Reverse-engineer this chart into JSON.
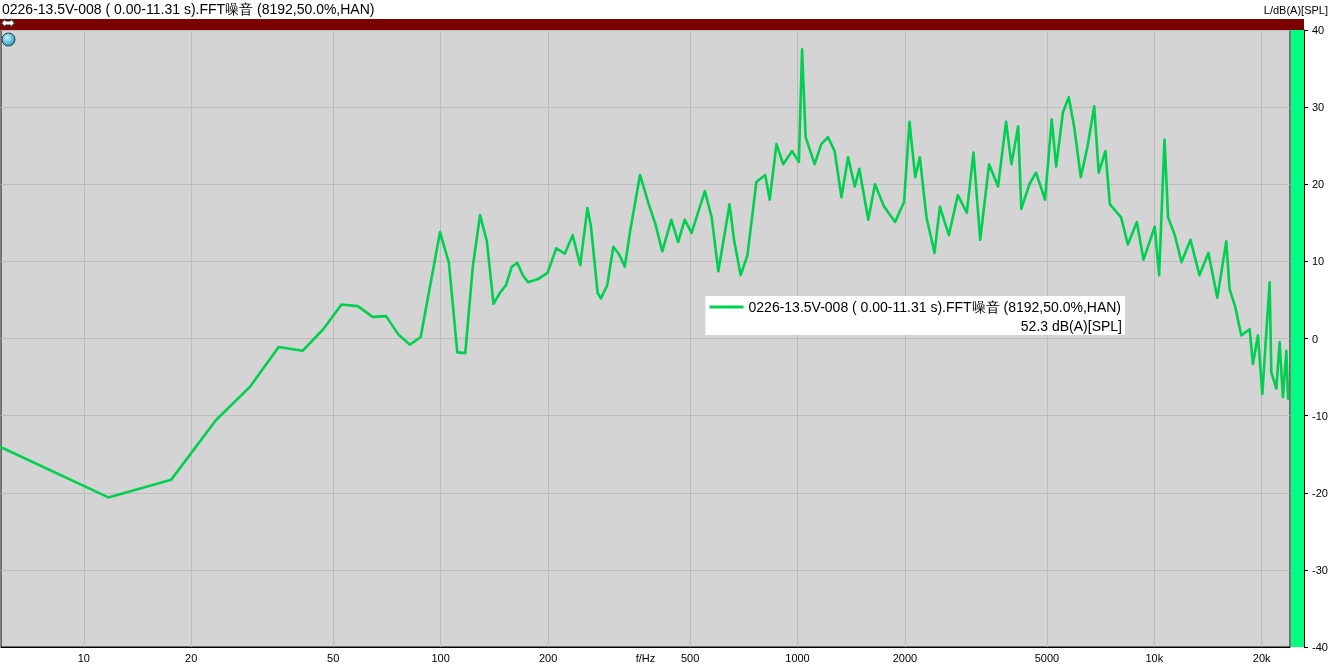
{
  "chart_data": {
    "type": "line",
    "title": "0226-13.5V-008 ( 0.00-11.31 s).FFT噪音 (8192,50.0%,HAN)",
    "xlabel": "f/Hz",
    "ylabel": "L/dB(A)[SPL]",
    "annotations": [
      "52.3 dB(A)[SPL]"
    ],
    "x": [
      5.86,
      11.72,
      17.58,
      23.44,
      29.3,
      35.16,
      41.02,
      46.88,
      52.73,
      58.59,
      64.45,
      70.31,
      76.17,
      82.03,
      87.89,
      93.75,
      99.61,
      105.47,
      111.33,
      117.19,
      123.05,
      128.91,
      134.77,
      140.63,
      146.48,
      152.34,
      158.2,
      164.06,
      169.92,
      175.78,
      187.5,
      199.22,
      210.94,
      222.66,
      234.38,
      246.09,
      257.81,
      263.67,
      275.39,
      281.25,
      292.97,
      304.69,
      316.41,
      328.13,
      339.84,
      362,
      383,
      400,
      418,
      443,
      463,
      483,
      505,
      550,
      575,
      600,
      645,
      664,
      693,
      724,
      767,
      812,
      836,
      873,
      912,
      966,
      1009,
      1030,
      1054,
      1117,
      1166,
      1218,
      1271,
      1328,
      1386,
      1447,
      1490,
      1579,
      1649,
      1748,
      1877,
      1989,
      2060,
      2138,
      2202,
      2299,
      2421,
      2506,
      2656,
      2814,
      2982,
      3113,
      3251,
      3443,
      3648,
      3841,
      3977,
      4153,
      4239,
      4465,
      4661,
      4939,
      5157,
      5309,
      5544,
      5755,
      5960,
      6223,
      6498,
      6785,
      6985,
      7294,
      7508,
      8071,
      8430,
      8932,
      9326,
      10025,
      10314,
      10679,
      10930,
      11414,
      11918,
      12627,
      13379,
      14174,
      15014,
      15909,
      16254,
      16852,
      17532,
      18493,
      18893,
      19515,
      20076,
      20600,
      21045,
      21275,
      21971,
      22446,
      22928,
      23440,
      23700
    ],
    "series": [
      {
        "name": "0226-13.5V-008 ( 0.00-11.31 s).FFT噪音 (8192,50.0%,HAN)",
        "color": "#00d050",
        "values": [
          -14.1,
          -20.6,
          -18.3,
          -10.6,
          -6.2,
          -1.1,
          -1.6,
          1.2,
          4.4,
          4.2,
          2.8,
          2.9,
          0.5,
          -0.8,
          0.2,
          7.2,
          13.8,
          9.8,
          -1.8,
          -1.9,
          9.3,
          16.0,
          12.6,
          4.5,
          5.9,
          6.9,
          9.3,
          9.8,
          8.2,
          7.3,
          7.7,
          8.5,
          11.7,
          11.0,
          13.4,
          9.5,
          16.9,
          14.6,
          5.9,
          5.2,
          6.9,
          11.9,
          10.9,
          9.3,
          14.0,
          21.2,
          17.4,
          14.8,
          11.3,
          15.4,
          12.5,
          15.4,
          13.7,
          19.1,
          15.7,
          8.7,
          17.4,
          12.8,
          8.2,
          10.8,
          20.3,
          21.2,
          18.0,
          25.2,
          22.6,
          24.3,
          22.9,
          37.5,
          26.1,
          22.6,
          25.2,
          26.1,
          24.3,
          18.3,
          23.5,
          19.7,
          22.0,
          15.4,
          20.0,
          17.1,
          15.1,
          17.7,
          28.1,
          20.9,
          23.5,
          15.7,
          11.1,
          17.1,
          13.4,
          18.6,
          16.3,
          24.1,
          12.8,
          22.6,
          19.7,
          28.1,
          22.6,
          27.5,
          16.8,
          20.0,
          21.5,
          18.0,
          28.4,
          22.3,
          29.3,
          31.3,
          27.5,
          20.9,
          24.9,
          30.1,
          21.5,
          24.3,
          17.4,
          15.7,
          12.2,
          15.1,
          10.2,
          14.5,
          8.2,
          25.8,
          15.7,
          13.4,
          9.9,
          12.8,
          8.2,
          11.1,
          5.3,
          12.6,
          6.4,
          4.1,
          0.4,
          1.2,
          -3.3,
          0.4,
          -7.2,
          0.8,
          7.3,
          -4.4,
          -6.5,
          -0.5,
          -7.6,
          -1.6,
          -7.8
        ]
      }
    ],
    "xlim": [
      5.86,
      24000
    ],
    "ylim": [
      -40,
      40
    ],
    "xticks": [
      10,
      20,
      50,
      100,
      200,
      500,
      1000,
      2000,
      5000,
      {
        "value": 10000,
        "label": "10k"
      },
      {
        "value": 20000,
        "label": "20k"
      }
    ],
    "yticks": [
      -40,
      -30,
      -20,
      -10,
      0,
      10,
      20,
      30,
      40
    ],
    "log": "x",
    "grid": true,
    "legend": "right",
    "line_style": "solid"
  }
}
